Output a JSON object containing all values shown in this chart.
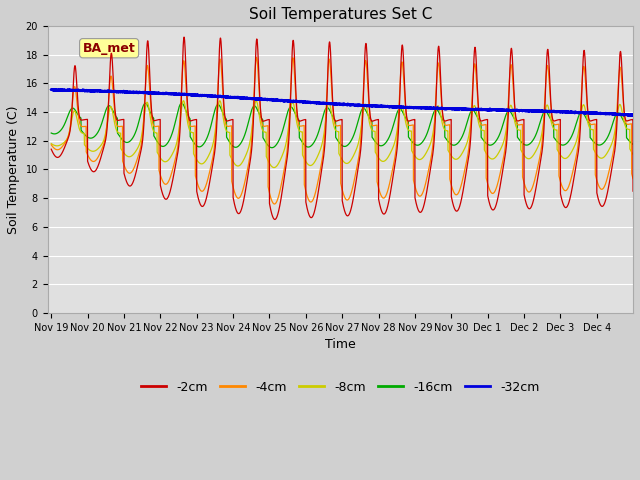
{
  "title": "Soil Temperatures Set C",
  "xlabel": "Time",
  "ylabel": "Soil Temperature (C)",
  "ylim": [
    0,
    20
  ],
  "yticks": [
    0,
    2,
    4,
    6,
    8,
    10,
    12,
    14,
    16,
    18,
    20
  ],
  "annotation": "BA_met",
  "series_labels": [
    "-2cm",
    "-4cm",
    "-8cm",
    "-16cm",
    "-32cm"
  ],
  "series_colors": [
    "#cc0000",
    "#ff8800",
    "#cccc00",
    "#00aa00",
    "#0000dd"
  ],
  "fig_bg_color": "#d0d0d0",
  "plot_bg_color": "#e0e0e0",
  "title_fontsize": 11,
  "axis_fontsize": 9,
  "tick_fontsize": 7,
  "legend_fontsize": 9,
  "x_labels": [
    "Nov 19",
    "Nov 20",
    "Nov 21",
    "Nov 22",
    "Nov 23",
    "Nov 24",
    "Nov 25",
    "Nov 26",
    "Nov 27",
    "Nov 28",
    "Nov 29",
    "Nov 30",
    "Dec 1",
    "Dec 2",
    "Dec 3",
    "Dec 4"
  ],
  "figsize": [
    6.4,
    4.8
  ],
  "dpi": 100
}
